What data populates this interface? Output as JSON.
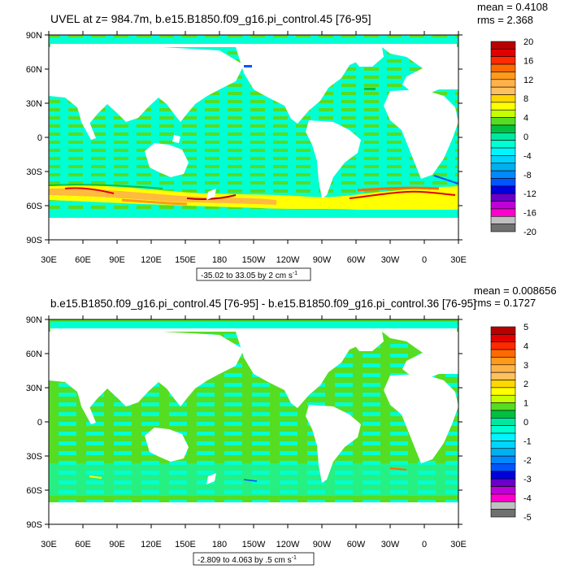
{
  "panels": [
    {
      "title": "UVEL at z= 984.7m, b.e15.B1850.f09_g16.pi_control.45 [76-95]",
      "stats": {
        "mean": "mean = 0.4108",
        "rms": "rms = 2.368"
      },
      "range_label": "-35.02 to 33.05 by 2 cm s",
      "range_superscript": "-1",
      "colorbar": {
        "labels": [
          "20",
          "16",
          "12",
          "8",
          "4",
          "0",
          "-4",
          "-8",
          "-12",
          "-16",
          "-20"
        ],
        "colors": [
          "#b80000",
          "#e00000",
          "#ff2a00",
          "#ff6a00",
          "#ff9a1a",
          "#ffb347",
          "#ffc060",
          "#ffd700",
          "#ffff00",
          "#c8ff00",
          "#55dd22",
          "#00c040",
          "#00e8a0",
          "#00ffd2",
          "#00f5ff",
          "#00d4ff",
          "#00b0f0",
          "#0088ff",
          "#0055ff",
          "#0000dd",
          "#6a00c8",
          "#c000d8",
          "#ff00cc",
          "#c0c0c0",
          "#707070"
        ]
      }
    },
    {
      "title": "b.e15.B1850.f09_g16.pi_control.45 [76-95] - b.e15.B1850.f09_g16.pi_control.36 [76-95]",
      "stats": {
        "mean": "mean = 0.008656",
        "rms": "rms = 0.1727"
      },
      "range_label": "-2.809 to 4.063 by .5 cm s",
      "range_superscript": "-1",
      "colorbar": {
        "labels": [
          "5",
          "4",
          "3",
          "2",
          "1",
          "0",
          "-1",
          "-2",
          "-3",
          "-4",
          "-5"
        ],
        "colors": [
          "#b80000",
          "#e00000",
          "#ff2a00",
          "#ff6a00",
          "#ff9a1a",
          "#ffb347",
          "#ffc060",
          "#ffd700",
          "#ffff00",
          "#c8ff00",
          "#55dd22",
          "#00c040",
          "#00e8a0",
          "#00ffd2",
          "#00f5ff",
          "#00d4ff",
          "#00b0f0",
          "#0088ff",
          "#0055ff",
          "#0000dd",
          "#6a00c8",
          "#c000d8",
          "#ff00cc",
          "#c0c0c0",
          "#707070"
        ]
      }
    }
  ],
  "axes": {
    "lat_labels": [
      "90N",
      "60N",
      "30N",
      "0",
      "30S",
      "60S",
      "90S"
    ],
    "lon_labels": [
      "30E",
      "60E",
      "90E",
      "120E",
      "150E",
      "180",
      "150W",
      "120W",
      "90W",
      "60W",
      "30W",
      "0",
      "30E"
    ]
  },
  "colors": {
    "ocean_primary": "#00ffd2",
    "ocean_secondary": "#55dd22",
    "land": "#ffffff",
    "acc_yellow": "#ffff00",
    "acc_orange": "#ff9a1a",
    "acc_red": "#e00000",
    "acc_blue": "#0055ff"
  }
}
